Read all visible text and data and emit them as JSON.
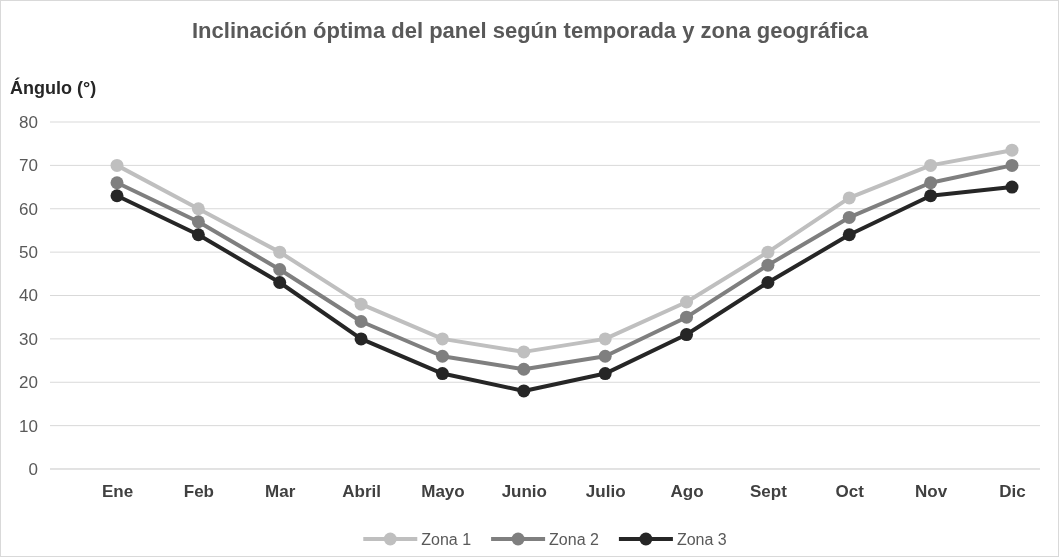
{
  "chart_data": {
    "type": "line",
    "title": "Inclinación óptima del panel según temporada y zona geográfica",
    "ylabel": "Ángulo (°)",
    "categories": [
      "Ene",
      "Feb",
      "Mar",
      "Abril",
      "Mayo",
      "Junio",
      "Julio",
      "Ago",
      "Sept",
      "Oct",
      "Nov",
      "Dic"
    ],
    "series": [
      {
        "name": "Zona 1",
        "color": "#bfbfbf",
        "values": [
          70,
          60,
          50,
          38,
          30,
          27,
          30,
          38.5,
          50,
          62.5,
          70,
          73.5
        ]
      },
      {
        "name": "Zona 2",
        "color": "#7f7f7f",
        "values": [
          66,
          57,
          46,
          34,
          26,
          23,
          26,
          35,
          47,
          58,
          66,
          70
        ]
      },
      {
        "name": "Zona 3",
        "color": "#262626",
        "values": [
          63,
          54,
          43,
          30,
          22,
          18,
          22,
          31,
          43,
          54,
          63,
          65
        ]
      }
    ],
    "ylim": [
      0,
      80
    ],
    "yticks": [
      0,
      10,
      20,
      30,
      40,
      50,
      60,
      70,
      80
    ],
    "grid": "y",
    "legend": "bottom",
    "marker": "circle",
    "line_style": "solid"
  }
}
